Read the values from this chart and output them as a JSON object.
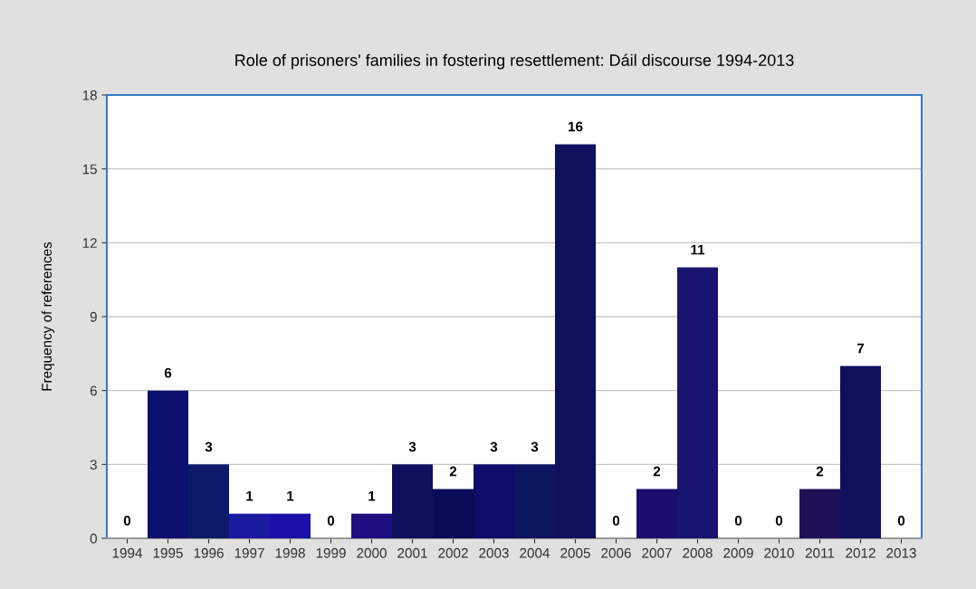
{
  "chart_data": {
    "type": "bar",
    "title": "Role of prisoners' families in fostering resettlement: Dáil discourse 1994-2013",
    "ylabel": "Frequency of references",
    "categories": [
      "1994",
      "1995",
      "1996",
      "1997",
      "1998",
      "1999",
      "2000",
      "2001",
      "2002",
      "2003",
      "2004",
      "2005",
      "2006",
      "2007",
      "2008",
      "2009",
      "2010",
      "2011",
      "2012",
      "2013"
    ],
    "values": [
      0,
      6,
      3,
      1,
      1,
      0,
      1,
      3,
      2,
      3,
      3,
      16,
      0,
      2,
      11,
      0,
      0,
      2,
      7,
      0
    ],
    "colors": [
      "#10105e",
      "#0e1070",
      "#0d1a6a",
      "#1a1aa0",
      "#1c10a8",
      "#10105e",
      "#1e1080",
      "#0f0f5e",
      "#0a0a58",
      "#0e0c6a",
      "#0c1560",
      "#10105e",
      "#10105e",
      "#1a0f6e",
      "#1a1570",
      "#10105e",
      "#10105e",
      "#201058",
      "#10105e",
      "#10105e"
    ],
    "ylim": [
      0,
      18
    ],
    "yticks": [
      0,
      3,
      6,
      9,
      12,
      15,
      18
    ],
    "grid": "y",
    "data_labels": true
  }
}
